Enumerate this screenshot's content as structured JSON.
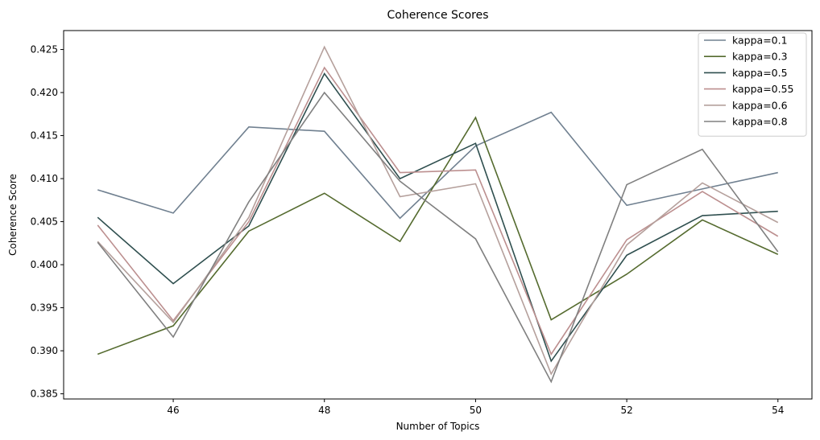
{
  "chart_data": {
    "type": "line",
    "title": "Coherence Scores",
    "xlabel": "Number of Topics",
    "ylabel": "Coherence Score",
    "xlim": [
      44.55,
      54.45
    ],
    "ylim": [
      0.3844,
      0.4272
    ],
    "xticks": [
      46,
      48,
      50,
      52,
      54
    ],
    "yticks": [
      0.385,
      0.39,
      0.395,
      0.4,
      0.405,
      0.41,
      0.415,
      0.42,
      0.425
    ],
    "grid": false,
    "legend_position": "top-right",
    "x": [
      45,
      46,
      47,
      48,
      49,
      50,
      51,
      52,
      53,
      54
    ],
    "series": [
      {
        "name": "kappa=0.1",
        "color": "#708090",
        "values": [
          0.4087,
          0.406,
          0.416,
          0.4155,
          0.4054,
          0.4138,
          0.4177,
          0.4069,
          0.4088,
          0.4107
        ]
      },
      {
        "name": "kappa=0.3",
        "color": "#556B2F",
        "values": [
          0.3896,
          0.3929,
          0.4039,
          0.4083,
          0.4027,
          0.4171,
          0.3936,
          0.3989,
          0.4052,
          0.4012
        ]
      },
      {
        "name": "kappa=0.5",
        "color": "#2F4F4F",
        "values": [
          0.4055,
          0.3978,
          0.4045,
          0.4222,
          0.41,
          0.4141,
          0.3888,
          0.4011,
          0.4057,
          0.4062
        ]
      },
      {
        "name": "kappa=0.55",
        "color": "#BC8F8F",
        "values": [
          0.4046,
          0.3935,
          0.405,
          0.4229,
          0.4107,
          0.411,
          0.3896,
          0.4029,
          0.4085,
          0.4033
        ]
      },
      {
        "name": "kappa=0.6",
        "color": "#B5A09C",
        "values": [
          0.4027,
          0.3933,
          0.4055,
          0.4253,
          0.4079,
          0.4094,
          0.3873,
          0.4023,
          0.4095,
          0.4049
        ]
      },
      {
        "name": "kappa=0.8",
        "color": "#808080",
        "values": [
          0.4026,
          0.3916,
          0.4073,
          0.42,
          0.4097,
          0.403,
          0.3864,
          0.4093,
          0.4134,
          0.4015
        ]
      }
    ]
  }
}
